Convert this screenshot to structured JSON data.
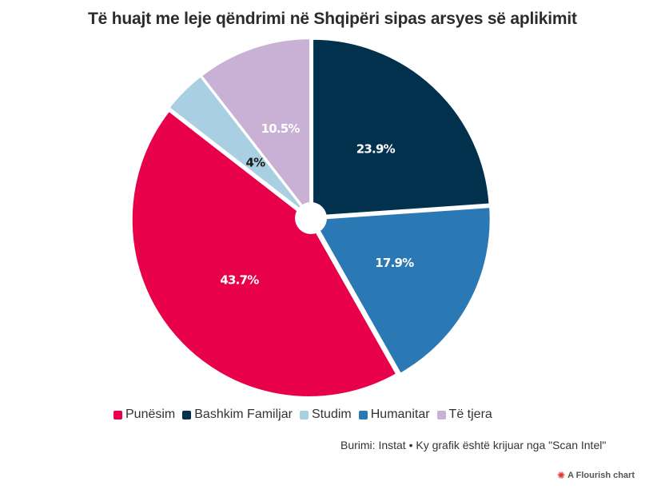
{
  "chart_data": {
    "type": "pie",
    "title": "Të huajt me leje qëndrimi në Shqipëri sipas arsyes së aplikimit",
    "categories": [
      "Punësim",
      "Bashkim Familjar",
      "Studim",
      "Humanitar",
      "Të tjera"
    ],
    "values": [
      43.7,
      23.9,
      4,
      17.9,
      10.5
    ],
    "slices": [
      {
        "name": "Bashkim Familjar",
        "value": 23.9,
        "label": "23.9%",
        "color": "#02314d"
      },
      {
        "name": "Humanitar",
        "value": 17.9,
        "label": "17.9%",
        "color": "#2a78b4"
      },
      {
        "name": "Punësim",
        "value": 43.7,
        "label": "43.7%",
        "color": "#e8004b"
      },
      {
        "name": "Studim",
        "value": 4,
        "label": "4%",
        "color": "#a8d0e2"
      },
      {
        "name": "Të tjera",
        "value": 10.5,
        "label": "10.5%",
        "color": "#c9b1d5"
      }
    ],
    "legend_placement": "bottom",
    "donut_hole": true
  },
  "legend": [
    {
      "label": "Punësim",
      "color": "#e8004b"
    },
    {
      "label": "Bashkim Familjar",
      "color": "#02314d"
    },
    {
      "label": "Studim",
      "color": "#a8d0e2"
    },
    {
      "label": "Humanitar",
      "color": "#2a78b4"
    },
    {
      "label": "Të tjera",
      "color": "#c9b1d5"
    }
  ],
  "source_text": "Burimi: Instat • Ky grafik është krijuar nga \"Scan Intel\"",
  "credit_text": "A Flourish chart",
  "credit_icon": "flourish-logo-icon"
}
